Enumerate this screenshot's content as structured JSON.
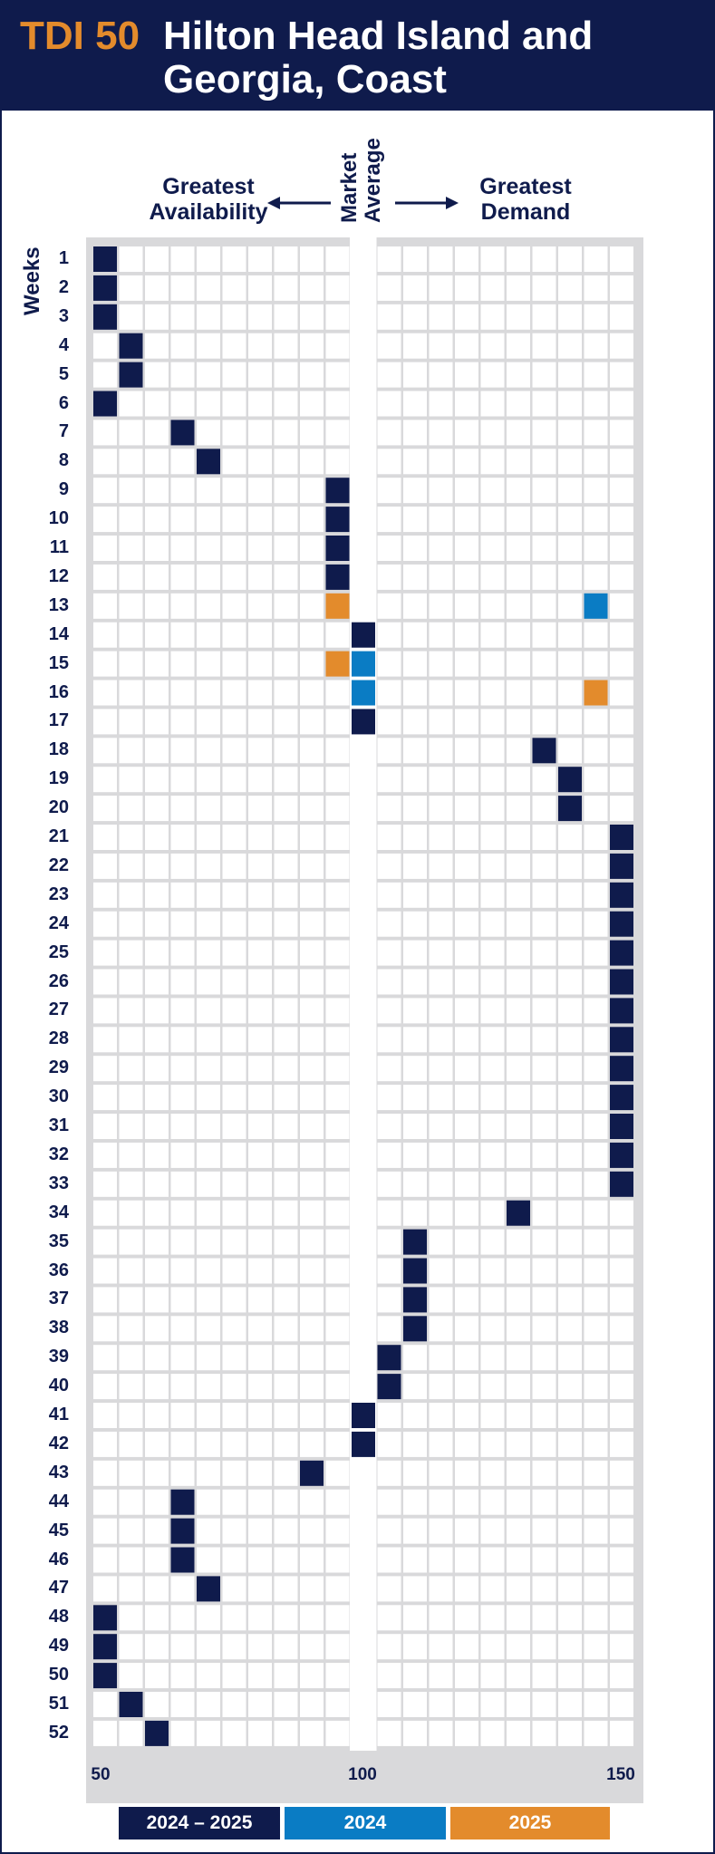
{
  "header": {
    "tdi_label": "TDI 50",
    "title_line1": "Hilton Head Island and",
    "title_line2": "Georgia, Coast"
  },
  "labels": {
    "left_line1": "Greatest",
    "left_line2": "Availability",
    "center_line1": "Market",
    "center_line2": "Average",
    "right_line1": "Greatest",
    "right_line2": "Demand",
    "y_axis": "Weeks"
  },
  "chart_data": {
    "type": "heatmap",
    "title": "Hilton Head Island and Georgia, Coast",
    "ylabel": "Weeks",
    "xlim": [
      50,
      150
    ],
    "x_ticks": [
      50,
      100,
      150
    ],
    "weeks": [
      1,
      2,
      3,
      4,
      5,
      6,
      7,
      8,
      9,
      10,
      11,
      12,
      13,
      14,
      15,
      16,
      17,
      18,
      19,
      20,
      21,
      22,
      23,
      24,
      25,
      26,
      27,
      28,
      29,
      30,
      31,
      32,
      33,
      34,
      35,
      36,
      37,
      38,
      39,
      40,
      41,
      42,
      43,
      44,
      45,
      46,
      47,
      48,
      49,
      50,
      51,
      52
    ],
    "series": [
      {
        "name": "2024 – 2025",
        "color": "#0f1b4c",
        "points": [
          {
            "week": 1,
            "tdi": 52
          },
          {
            "week": 2,
            "tdi": 52
          },
          {
            "week": 3,
            "tdi": 52
          },
          {
            "week": 4,
            "tdi": 57
          },
          {
            "week": 5,
            "tdi": 57
          },
          {
            "week": 6,
            "tdi": 52
          },
          {
            "week": 7,
            "tdi": 67
          },
          {
            "week": 8,
            "tdi": 72
          },
          {
            "week": 9,
            "tdi": 97
          },
          {
            "week": 10,
            "tdi": 97
          },
          {
            "week": 11,
            "tdi": 97
          },
          {
            "week": 12,
            "tdi": 97
          },
          {
            "week": 14,
            "tdi": 102
          },
          {
            "week": 17,
            "tdi": 102
          },
          {
            "week": 18,
            "tdi": 137
          },
          {
            "week": 19,
            "tdi": 142
          },
          {
            "week": 20,
            "tdi": 142
          },
          {
            "week": 21,
            "tdi": 150
          },
          {
            "week": 22,
            "tdi": 150
          },
          {
            "week": 23,
            "tdi": 150
          },
          {
            "week": 24,
            "tdi": 150
          },
          {
            "week": 25,
            "tdi": 150
          },
          {
            "week": 26,
            "tdi": 150
          },
          {
            "week": 27,
            "tdi": 150
          },
          {
            "week": 28,
            "tdi": 150
          },
          {
            "week": 29,
            "tdi": 150
          },
          {
            "week": 30,
            "tdi": 150
          },
          {
            "week": 31,
            "tdi": 150
          },
          {
            "week": 32,
            "tdi": 150
          },
          {
            "week": 33,
            "tdi": 150
          },
          {
            "week": 34,
            "tdi": 132
          },
          {
            "week": 35,
            "tdi": 112
          },
          {
            "week": 36,
            "tdi": 112
          },
          {
            "week": 37,
            "tdi": 112
          },
          {
            "week": 38,
            "tdi": 112
          },
          {
            "week": 39,
            "tdi": 107
          },
          {
            "week": 40,
            "tdi": 107
          },
          {
            "week": 41,
            "tdi": 102
          },
          {
            "week": 42,
            "tdi": 102
          },
          {
            "week": 43,
            "tdi": 92
          },
          {
            "week": 44,
            "tdi": 67
          },
          {
            "week": 45,
            "tdi": 67
          },
          {
            "week": 46,
            "tdi": 67
          },
          {
            "week": 47,
            "tdi": 72
          },
          {
            "week": 48,
            "tdi": 52
          },
          {
            "week": 49,
            "tdi": 52
          },
          {
            "week": 50,
            "tdi": 52
          },
          {
            "week": 51,
            "tdi": 57
          },
          {
            "week": 52,
            "tdi": 62
          }
        ]
      },
      {
        "name": "2024",
        "color": "#0a7cc4",
        "points": [
          {
            "week": 13,
            "tdi": 147
          },
          {
            "week": 15,
            "tdi": 102
          },
          {
            "week": 16,
            "tdi": 102
          }
        ]
      },
      {
        "name": "2025",
        "color": "#e38b2c",
        "points": [
          {
            "week": 13,
            "tdi": 97
          },
          {
            "week": 15,
            "tdi": 97
          },
          {
            "week": 16,
            "tdi": 147
          }
        ]
      }
    ],
    "grid": true,
    "legend_placement": "bottom"
  },
  "legend": [
    {
      "label": "2024 – 2025",
      "color": "#0f1b4c"
    },
    {
      "label": "2024",
      "color": "#0a7cc4"
    },
    {
      "label": "2025",
      "color": "#e38b2c"
    }
  ],
  "colors": {
    "navy": "#0f1b4c",
    "cell": "#d9d9db",
    "accent_orange": "#e38b2c",
    "accent_blue": "#0a7cc4"
  }
}
